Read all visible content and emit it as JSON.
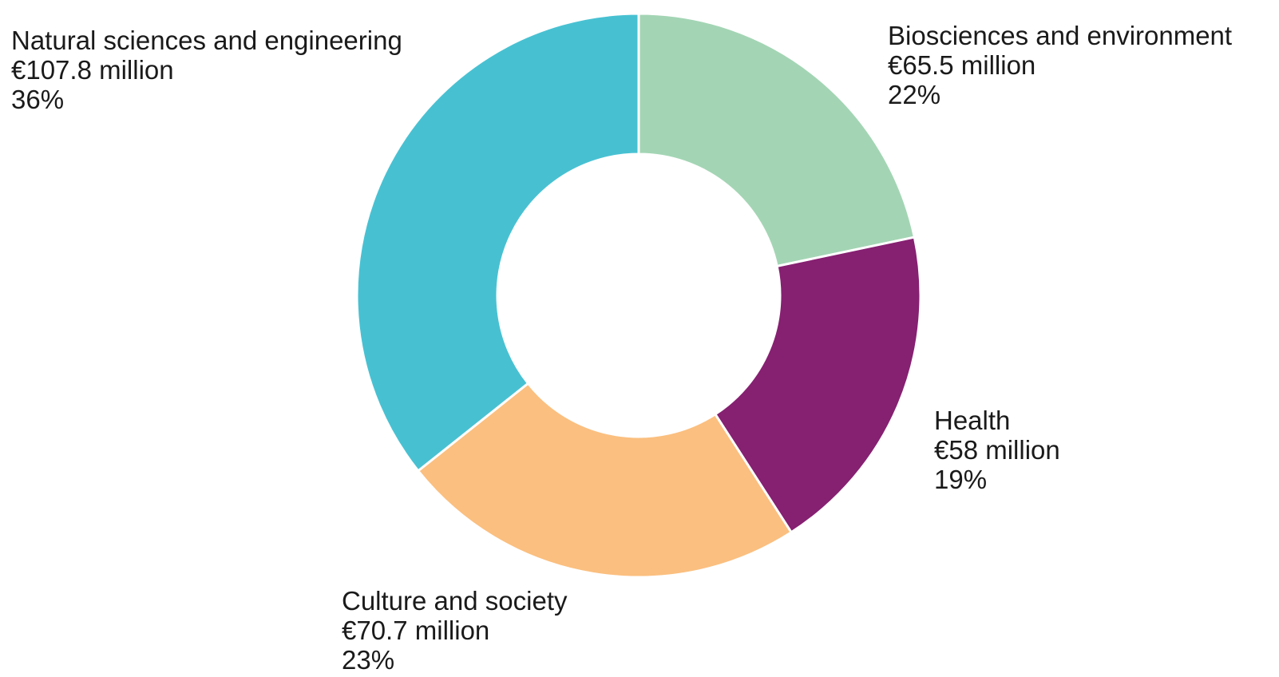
{
  "chart_data": {
    "type": "pie",
    "donut": true,
    "title": "",
    "slices": [
      {
        "category": "Biosciences and environment",
        "amount": "€65.5 million",
        "percent_label": "22%",
        "value": 65.5,
        "color": "#a3d5b4"
      },
      {
        "category": "Health",
        "amount": "€58 million",
        "percent_label": "19%",
        "value": 58,
        "color": "#862071"
      },
      {
        "category": "Culture and society",
        "amount": "€70.7 million",
        "percent_label": "23%",
        "value": 70.7,
        "color": "#fbbf7f"
      },
      {
        "category": "Natural sciences and engineering",
        "amount": "€107.8 million",
        "percent_label": "36%",
        "value": 107.8,
        "color": "#47c1d2"
      }
    ],
    "start_angle": "top",
    "direction": "clockwise"
  }
}
